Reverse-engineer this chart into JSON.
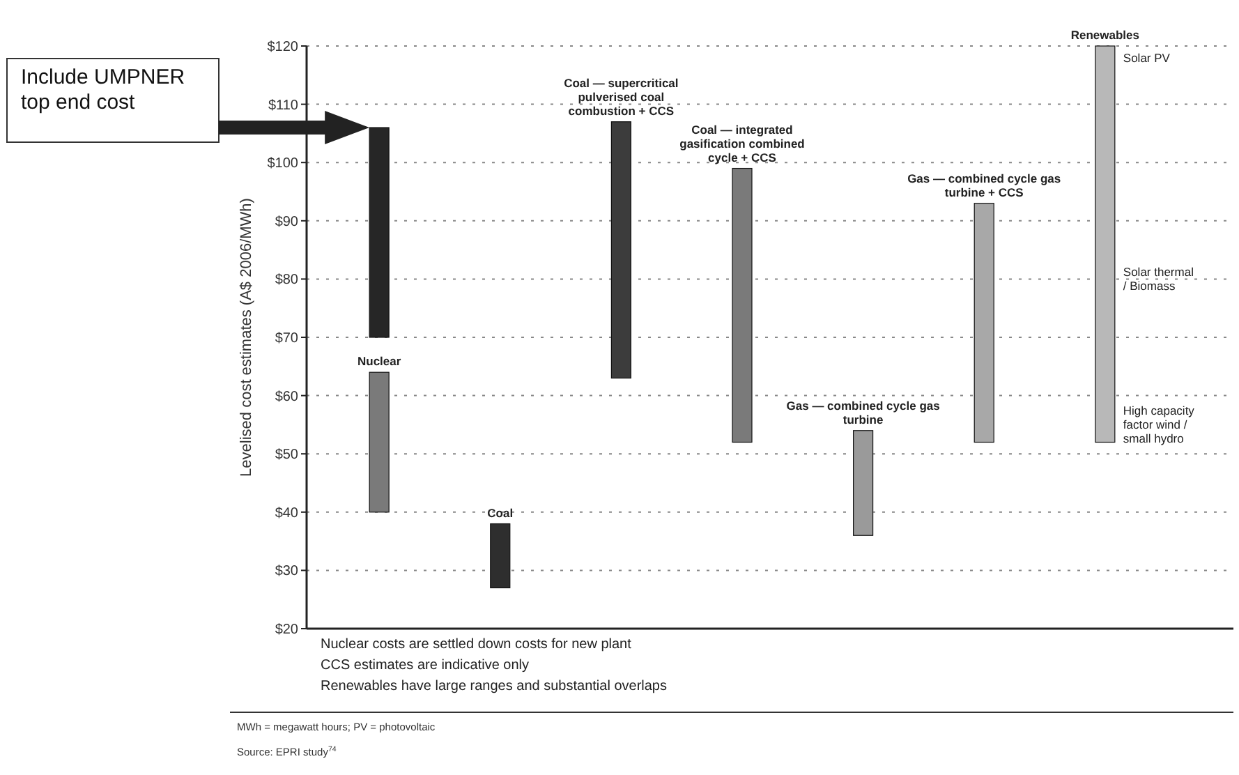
{
  "chart_data": {
    "type": "bar",
    "ylabel": "Levelised cost estimates (A$ 2006/MWh)",
    "categories": [
      "Nuclear",
      "Coal",
      "Coal — supercritical pulverised coal combustion + CCS",
      "Coal — integrated gasification combined cycle + CCS",
      "Gas — combined cycle gas turbine",
      "Gas — combined cycle gas turbine + CCS",
      "Renewables"
    ],
    "series": [
      {
        "colors": [
          "#7a7a7a",
          "#2e2e2e",
          "#3c3c3c",
          "#7a7a7a",
          "#9a9a9a",
          "#a8a8a8",
          "#b8b8b8"
        ],
        "base": [
          40,
          27,
          63,
          52,
          36,
          52,
          52
        ],
        "values": [
          24,
          11,
          44,
          47,
          18,
          41,
          68
        ]
      },
      {
        "color": "#262626",
        "base": [
          70,
          null,
          null,
          null,
          null,
          null,
          null
        ],
        "values": [
          36,
          null,
          null,
          null,
          null,
          null,
          null
        ]
      }
    ],
    "ylim": [
      20,
      120
    ],
    "yticks": [
      {
        "value": 20,
        "label": "$20"
      },
      {
        "value": 30,
        "label": "$30"
      },
      {
        "value": 40,
        "label": "$40"
      },
      {
        "value": 50,
        "label": "$50"
      },
      {
        "value": 60,
        "label": "$60"
      },
      {
        "value": 70,
        "label": "$70"
      },
      {
        "value": 80,
        "label": "$80"
      },
      {
        "value": 90,
        "label": "$90"
      },
      {
        "value": 100,
        "label": "$100"
      },
      {
        "value": 110,
        "label": "$110"
      },
      {
        "value": 120,
        "label": "$120"
      }
    ],
    "grid": "y",
    "annotations": [
      "Include UMPNER top end cost",
      "Solar PV",
      "Solar thermal / Biomass",
      "High capacity factor wind / small hydro",
      "Nuclear costs are settled down costs for new plant",
      "CCS estimates are indicative only",
      "Renewables have large ranges and substantial overlaps",
      "MWh = megawatt hours; PV = photovoltaic",
      "Source: EPRI study$^{74}$"
    ]
  }
}
